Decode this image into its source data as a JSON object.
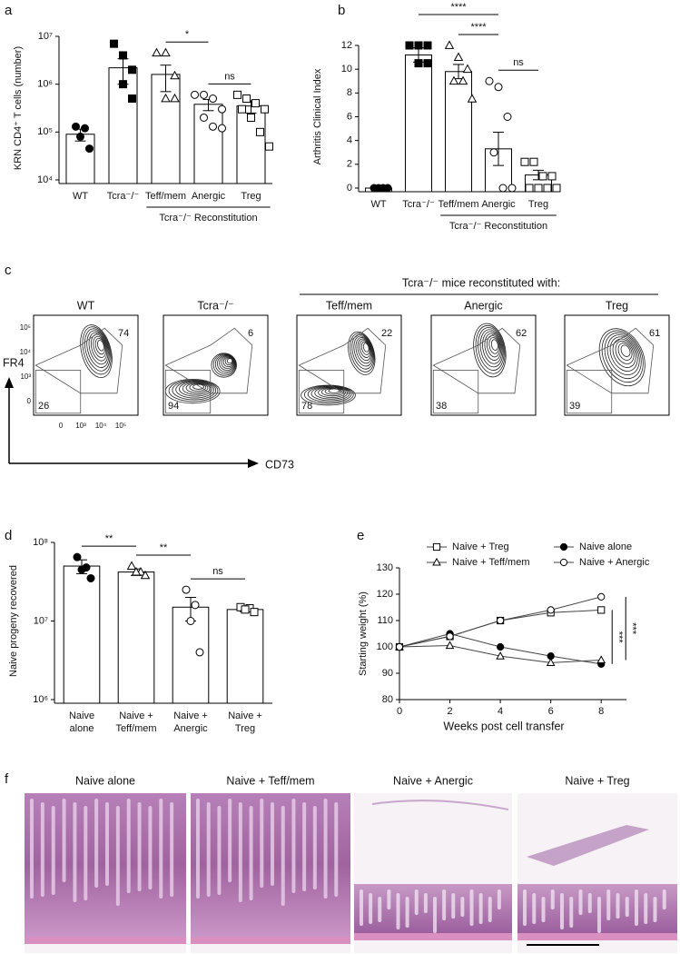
{
  "chart_data": [
    {
      "type": "bar",
      "panel": "a",
      "y_label": "KRN CD4⁺ T cells (number)",
      "log": true,
      "categories": [
        "WT",
        "Tcra⁻/⁻",
        "Teff/mem",
        "Anergic",
        "Treg"
      ],
      "values": [
        90000,
        2200000,
        1600000,
        380000,
        350000
      ],
      "errors": [
        25000,
        1200000,
        900000,
        100000,
        100000
      ],
      "points": [
        [
          130000,
          120000,
          80000,
          45000
        ],
        [
          7000000,
          4000000,
          2000000,
          1000000,
          500000
        ],
        [
          4500000,
          4500000,
          1500000,
          500000,
          500000
        ],
        [
          600000,
          600000,
          500000,
          300000,
          200000,
          130000,
          120000
        ],
        [
          600000,
          500000,
          400000,
          300000,
          300000,
          200000,
          100000,
          50000
        ]
      ],
      "markers": [
        "circle-filled",
        "square-filled",
        "triangle-open",
        "circle-open",
        "square-open"
      ],
      "ylim": [
        10000,
        10000000
      ],
      "yticks": [
        {
          "value": 10000,
          "label": "10⁴"
        },
        {
          "value": 100000,
          "label": "10⁵"
        },
        {
          "value": 1000000,
          "label": "10⁶"
        },
        {
          "value": 10000000,
          "label": "10⁷"
        }
      ],
      "group": {
        "label": "Tcra⁻/⁻ Reconstitution",
        "from": "Teff/mem",
        "to": "Treg"
      },
      "annotations": [
        {
          "text": "*",
          "from": "Teff/mem",
          "to": "Anergic"
        },
        {
          "text": "ns",
          "from": "Anergic",
          "to": "Treg"
        }
      ]
    },
    {
      "type": "bar",
      "panel": "b",
      "y_label": "Arthritis Clinical Index",
      "log": false,
      "categories": [
        "WT",
        "Tcra⁻/⁻",
        "Teff/mem",
        "Anergic",
        "Treg"
      ],
      "values": [
        0,
        11.2,
        9.8,
        3.3,
        1.1
      ],
      "errors": [
        0,
        0.6,
        0.6,
        1.4,
        0.4
      ],
      "points": [
        [
          0,
          0,
          0,
          0
        ],
        [
          12,
          12,
          12,
          10.5,
          10.5
        ],
        [
          12,
          11,
          10,
          9,
          9,
          7.5
        ],
        [
          9,
          8.5,
          6,
          3,
          0,
          0
        ],
        [
          2.2,
          2.2,
          1,
          1,
          0,
          0,
          0,
          0
        ]
      ],
      "markers": [
        "circle-filled",
        "square-filled",
        "triangle-open",
        "circle-open",
        "square-open"
      ],
      "ylim": [
        0,
        12
      ],
      "yticks": [
        0,
        2,
        4,
        6,
        8,
        10,
        12
      ],
      "group": {
        "label": "Tcra⁻/⁻ Reconstitution",
        "from": "Teff/mem",
        "to": "Treg"
      },
      "annotations": [
        {
          "text": "****",
          "from": "Tcra⁻/⁻",
          "to": "Anergic"
        },
        {
          "text": "****",
          "from": "Teff/mem",
          "to": "Anergic"
        },
        {
          "text": "ns",
          "from": "Anergic",
          "to": "Treg"
        }
      ]
    },
    {
      "type": "bar",
      "panel": "d",
      "y_label": "Naive progeny recovered",
      "log": true,
      "categories": [
        [
          "Naive",
          "alone"
        ],
        [
          "Naive +",
          "Teff/mem"
        ],
        [
          "Naive +",
          "Anergic"
        ],
        [
          "Naive +",
          "Treg"
        ]
      ],
      "values": [
        50000000,
        42000000,
        15000000,
        14000000
      ],
      "errors": [
        10000000,
        4000000,
        5000000,
        800000
      ],
      "points": [
        [
          65000000,
          48000000,
          45000000,
          35000000
        ],
        [
          50000000,
          42000000,
          42000000,
          38000000
        ],
        [
          25000000,
          16000000,
          10000000,
          4000000
        ],
        [
          15000000,
          14500000,
          14000000,
          13000000
        ]
      ],
      "markers": [
        "circle-filled",
        "triangle-open",
        "circle-open",
        "square-open"
      ],
      "ylim": [
        1000000,
        100000000
      ],
      "yticks": [
        {
          "value": 1000000,
          "label": "10⁶"
        },
        {
          "value": 10000000,
          "label": "10⁷"
        },
        {
          "value": 100000000,
          "label": "10⁸"
        }
      ],
      "annotations": [
        {
          "text": "**",
          "from": "Naive",
          "to": "Naive +"
        },
        {
          "text": "**",
          "from": "Teff/mem",
          "to": "Anergic"
        },
        {
          "text": "ns",
          "from": "Anergic",
          "to": "Treg"
        }
      ]
    },
    {
      "type": "line",
      "panel": "e",
      "y_label": "Starting weight (%)",
      "x_label": "Weeks post cell transfer",
      "x": [
        0,
        2,
        4,
        6,
        8
      ],
      "series": [
        {
          "name": "Naive + Treg",
          "marker": "square-open",
          "values": [
            100,
            104,
            110,
            113,
            114
          ]
        },
        {
          "name": "Naive alone",
          "marker": "circle-filled",
          "values": [
            100,
            105,
            100,
            96.5,
            93.5
          ]
        },
        {
          "name": "Naive + Teff/mem",
          "marker": "triangle-open",
          "values": [
            100,
            100.5,
            96.5,
            94,
            95
          ]
        },
        {
          "name": "Naive + Anergic",
          "marker": "circle-open",
          "values": [
            100,
            104,
            110,
            114,
            119
          ]
        }
      ],
      "xlim": [
        0,
        9
      ],
      "xticks": [
        0,
        2,
        4,
        6,
        8
      ],
      "ylim": [
        80,
        130
      ],
      "yticks": [
        80,
        90,
        100,
        110,
        120,
        130
      ],
      "annotations": [
        {
          "text": "***",
          "from": "Naive + Treg",
          "to": "Naive alone"
        },
        {
          "text": "***",
          "from": "Naive + Anergic",
          "to": "Naive + Teff/mem"
        }
      ]
    }
  ],
  "panel_c": {
    "panel": "c",
    "header": "Tcra⁻/⁻ mice reconstituted with:",
    "y_label": "FR4",
    "x_label": "CD73",
    "y_ticks": [
      "10⁵",
      "10⁴",
      "10³",
      "0"
    ],
    "x_ticks": [
      "0",
      "10³",
      "10⁴",
      "10⁵"
    ],
    "plots": [
      {
        "title": "WT",
        "upper": "74",
        "lower": "26"
      },
      {
        "title": "Tcra⁻/⁻",
        "upper": "6",
        "lower": "94"
      },
      {
        "title": "Teff/mem",
        "upper": "22",
        "lower": "78"
      },
      {
        "title": "Anergic",
        "upper": "62",
        "lower": "38"
      },
      {
        "title": "Treg",
        "upper": "61",
        "lower": "39"
      }
    ]
  },
  "panel_f": {
    "panel": "f",
    "images": [
      "Naive alone",
      "Naive + Teff/mem",
      "Naive + Anergic",
      "Naive + Treg"
    ]
  }
}
